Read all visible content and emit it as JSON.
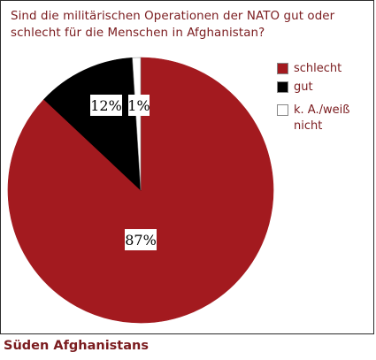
{
  "chart_data": {
    "type": "pie",
    "title": "Sind die militärischen Operationen der NATO gut oder schlecht für die Menschen in Afghanistan?",
    "slices": [
      {
        "label": "schlecht",
        "value": 87,
        "display": "87%",
        "color": "#a31a1f"
      },
      {
        "label": "gut",
        "value": 12,
        "display": "12%",
        "color": "#000000"
      },
      {
        "label": "k. A./weiß nicht",
        "value": 1,
        "display": "1%",
        "color": "#ffffff"
      }
    ],
    "legend_placement": "right",
    "caption": "Süden Afghanistans"
  }
}
